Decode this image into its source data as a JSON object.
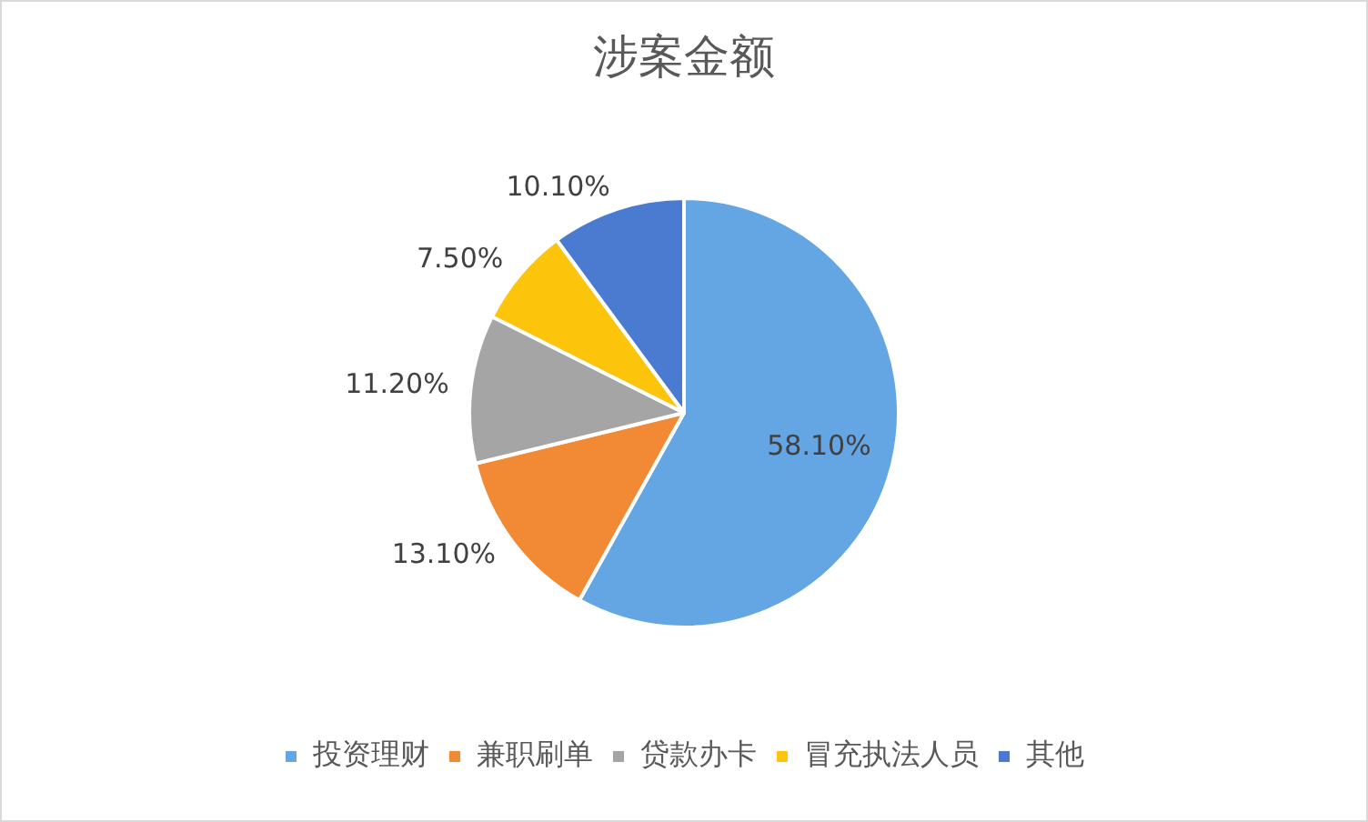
{
  "chart_data": {
    "type": "pie",
    "title": "涉案金额",
    "categories": [
      "投资理财",
      "兼职刷单",
      "贷款办卡",
      "冒充执法人员",
      "其他"
    ],
    "values": [
      58.1,
      13.1,
      11.2,
      7.5,
      10.1
    ],
    "colors": [
      "#64a5e4",
      "#f28a35",
      "#a5a5a5",
      "#fdc40c",
      "#4a7bd0"
    ],
    "value_labels": [
      "58.10%",
      "13.10%",
      "11.20%",
      "7.50%",
      "10.10%"
    ],
    "legend": "bottom"
  }
}
